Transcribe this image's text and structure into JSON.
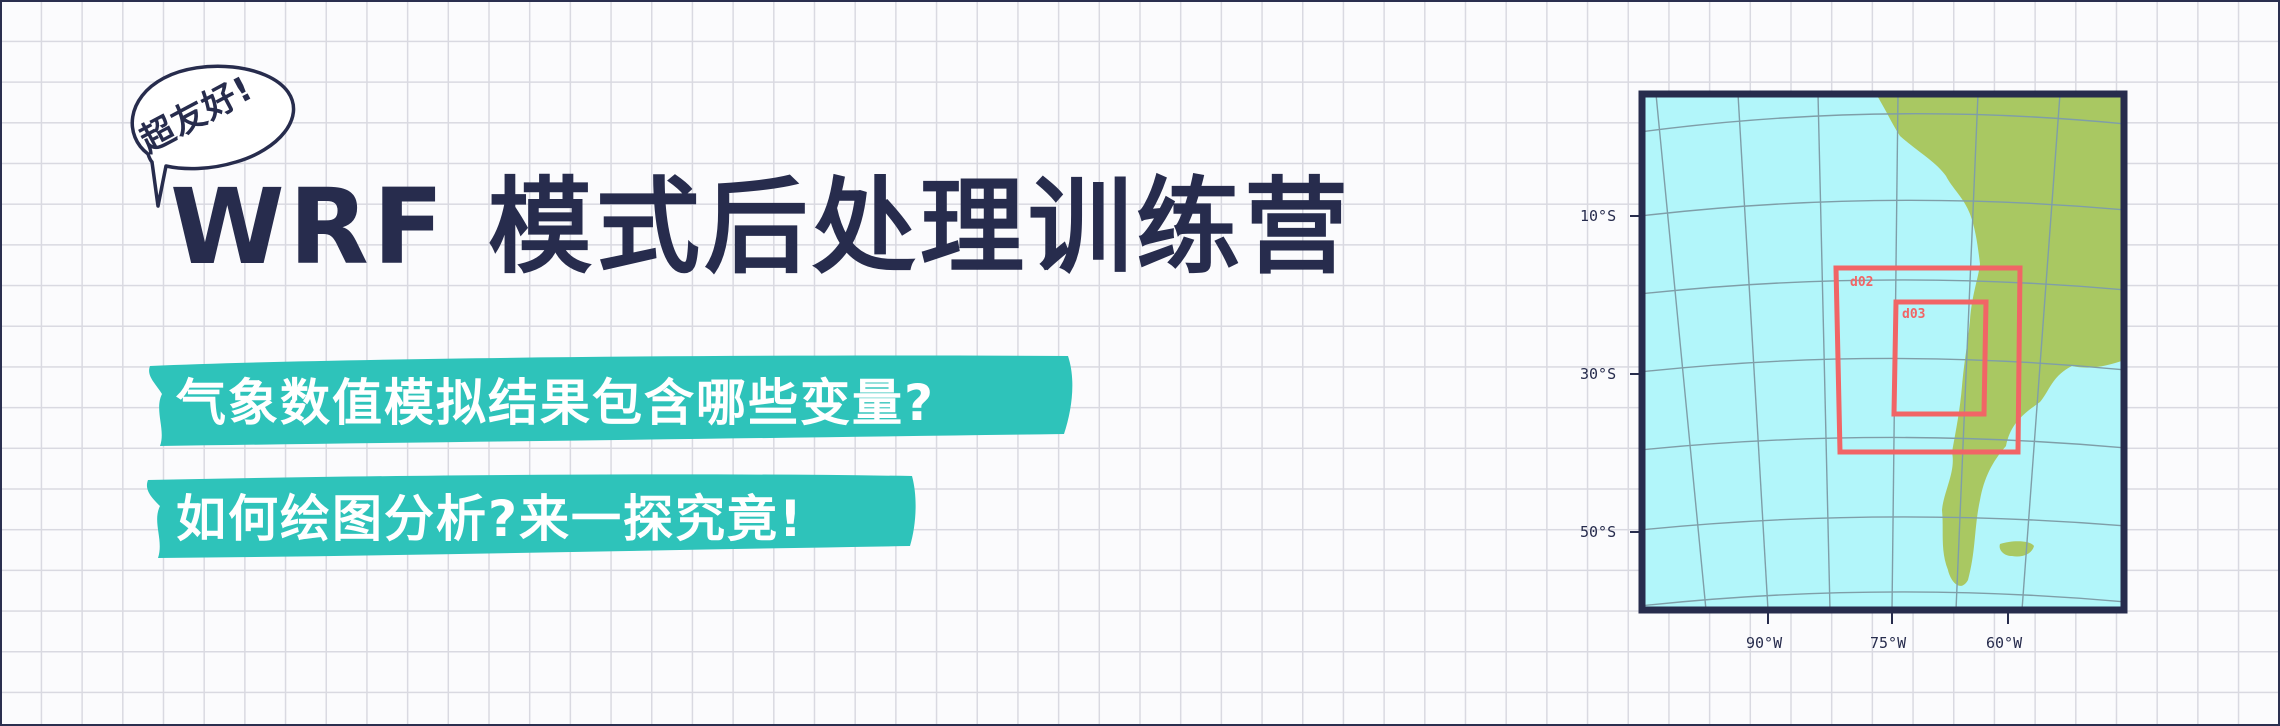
{
  "badge": {
    "text": "超友好!"
  },
  "title": "WRF 模式后处理训练营",
  "banners": [
    {
      "text": "气象数值模拟结果包含哪些变量?",
      "color": "#2ec3ba"
    },
    {
      "text": "如何绘图分析?来一探究竟!",
      "color": "#2ec3ba"
    }
  ],
  "map": {
    "colors": {
      "ocean": "#b2f6fa",
      "land": "#a9c862",
      "frame": "#272c4d",
      "domain_box": "#f16566"
    },
    "lat_ticks": [
      "10°S",
      "30°S",
      "50°S"
    ],
    "lon_ticks": [
      "90°W",
      "75°W",
      "60°W"
    ],
    "domains": [
      "d02",
      "d03"
    ]
  }
}
